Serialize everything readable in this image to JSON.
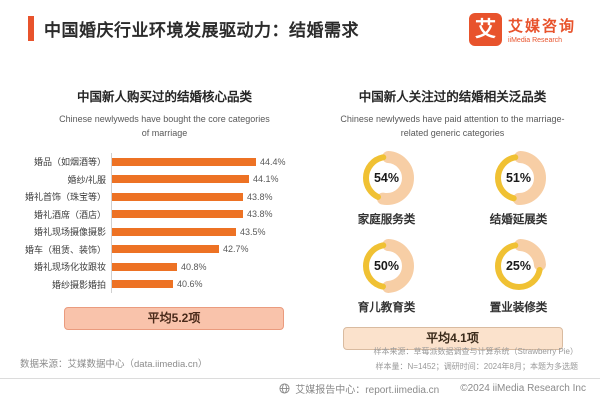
{
  "page": {
    "title": "中国婚庆行业环境发展驱动力：结婚需求"
  },
  "logo": {
    "glyph": "艾",
    "name": "艾媒咨询",
    "sub": "iiMedia Research"
  },
  "left_panel": {
    "title": "中国新人购买过的结婚核心品类",
    "subtitle_line1": "Chinese newlyweds have bought the core categories",
    "subtitle_line2": "of marriage"
  },
  "right_panel": {
    "title": "中国新人关注过的结婚相关泛品类",
    "subtitle_line1": "Chinese newlyweds have paid attention to the marriage-",
    "subtitle_line2": "related generic categories"
  },
  "chart_data": [
    {
      "type": "bar",
      "orientation": "horizontal",
      "title": "中国新人购买过的结婚核心品类",
      "categories": [
        "婚品（如烟酒等）",
        "婚纱/礼服",
        "婚礼首饰（珠宝等）",
        "婚礼酒席（酒店）",
        "婚礼现场摄像摄影",
        "婚车（租赁、装饰）",
        "婚礼现场化妆跟妆",
        "婚纱摄影婚拍"
      ],
      "values": [
        44.4,
        44.1,
        43.8,
        43.8,
        43.5,
        42.7,
        40.8,
        40.6
      ],
      "unit": "%",
      "xlim": [
        37.8,
        45
      ],
      "grid": false,
      "bar_color": "#ED7224",
      "average": "平均5.2项"
    },
    {
      "type": "pie",
      "subtype": "donut-grid",
      "title": "中国新人关注过的结婚相关泛品类",
      "items": [
        {
          "label": "家庭服务类",
          "value": 54
        },
        {
          "label": "结婚延展类",
          "value": 51
        },
        {
          "label": "育儿教育类",
          "value": 50
        },
        {
          "label": "置业装修类",
          "value": 25
        }
      ],
      "unit": "%",
      "value_arc_color": "#F7CEA5",
      "rest_arc_color": "#F0C133",
      "average": "平均4.1项"
    }
  ],
  "footer": {
    "source_left": "数据来源：艾媒数据中心（data.iimedia.cn）",
    "note_line1": "样本来源：草莓派数据调查与计算系统（Strawberry Pie）",
    "note_line2": "样本量：N=1452；调研时间：2024年8月；本题为多选题",
    "report_center": "艾媒报告中心：report.iimedia.cn",
    "copyright": "©2024  iiMedia Research Inc"
  },
  "colors": {
    "accent_orange": "#E8532C",
    "bar_orange": "#ED7224",
    "donut_peach": "#F7CEA5",
    "donut_gold": "#F0C133",
    "badge_left_bg": "#F9C3AB",
    "badge_right_bg": "#FBE2CC"
  }
}
